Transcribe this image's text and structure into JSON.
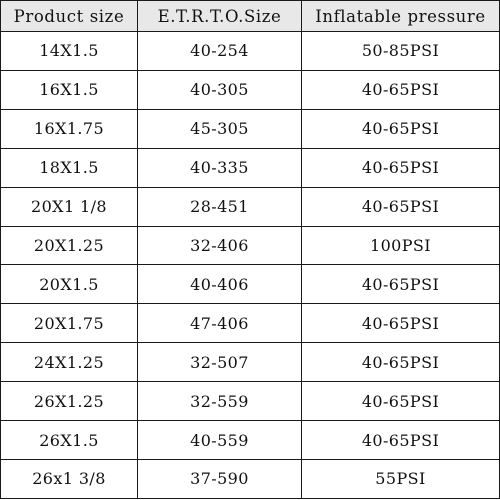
{
  "table": {
    "headers": [
      "Product size",
      "E.T.R.T.O.Size",
      "Inflatable pressure"
    ],
    "rows": [
      [
        "14X1.5",
        "40-254",
        "50-85PSI"
      ],
      [
        "16X1.5",
        "40-305",
        "40-65PSI"
      ],
      [
        "16X1.75",
        "45-305",
        "40-65PSI"
      ],
      [
        "18X1.5",
        "40-335",
        "40-65PSI"
      ],
      [
        "20X1 1/8",
        "28-451",
        "40-65PSI"
      ],
      [
        "20X1.25",
        "32-406",
        "100PSI"
      ],
      [
        "20X1.5",
        "40-406",
        "40-65PSI"
      ],
      [
        "20X1.75",
        "47-406",
        "40-65PSI"
      ],
      [
        "24X1.25",
        "32-507",
        "40-65PSI"
      ],
      [
        "26X1.25",
        "32-559",
        "40-65PSI"
      ],
      [
        "26X1.5",
        "40-559",
        "40-65PSI"
      ],
      [
        "26x1 3/8",
        "37-590",
        "55PSI"
      ]
    ]
  }
}
